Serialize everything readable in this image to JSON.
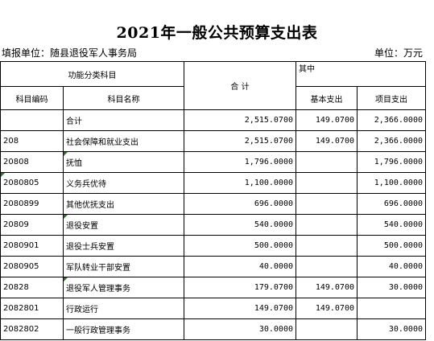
{
  "title": "2021年一般公共预算支出表",
  "unit_left": "填报单位：随县退役军人事务局",
  "unit_right": "单位：万元",
  "headers": {
    "func_category": "功能分类科目",
    "total": "合  计",
    "of_which": "其中",
    "code": "科目编码",
    "name": "科目名称",
    "basic": "基本支出",
    "project": "项目支出"
  },
  "rows": [
    {
      "code": "",
      "name": "合计",
      "total": "2,515.0700",
      "basic": "149.0700",
      "project": "2,366.0000"
    },
    {
      "code": "208",
      "name": "社会保障和就业支出",
      "total": "2,515.0700",
      "basic": "149.0700",
      "project": "2,366.0000"
    },
    {
      "code": "20808",
      "name": "抚恤",
      "total": "1,796.0000",
      "basic": "",
      "project": "1,796.0000"
    },
    {
      "code": "2080805",
      "name": "义务兵优待",
      "total": "1,100.0000",
      "basic": "",
      "project": "1,100.0000"
    },
    {
      "code": "2080899",
      "name": "其他优抚支出",
      "total": "696.0000",
      "basic": "",
      "project": "696.0000"
    },
    {
      "code": "20809",
      "name": "退役安置",
      "total": "540.0000",
      "basic": "",
      "project": "540.0000"
    },
    {
      "code": "2080901",
      "name": "退役士兵安置",
      "total": "500.0000",
      "basic": "",
      "project": "500.0000"
    },
    {
      "code": "2080905",
      "name": "军队转业干部安置",
      "total": "40.0000",
      "basic": "",
      "project": "40.0000"
    },
    {
      "code": "20828",
      "name": "退役军人管理事务",
      "total": "179.0700",
      "basic": "149.0700",
      "project": "30.0000"
    },
    {
      "code": "2082801",
      "name": "行政运行",
      "total": "149.0700",
      "basic": "149.0700",
      "project": ""
    },
    {
      "code": "2082802",
      "name": "一般行政管理事务",
      "total": "30.0000",
      "basic": "",
      "project": "30.0000"
    }
  ]
}
